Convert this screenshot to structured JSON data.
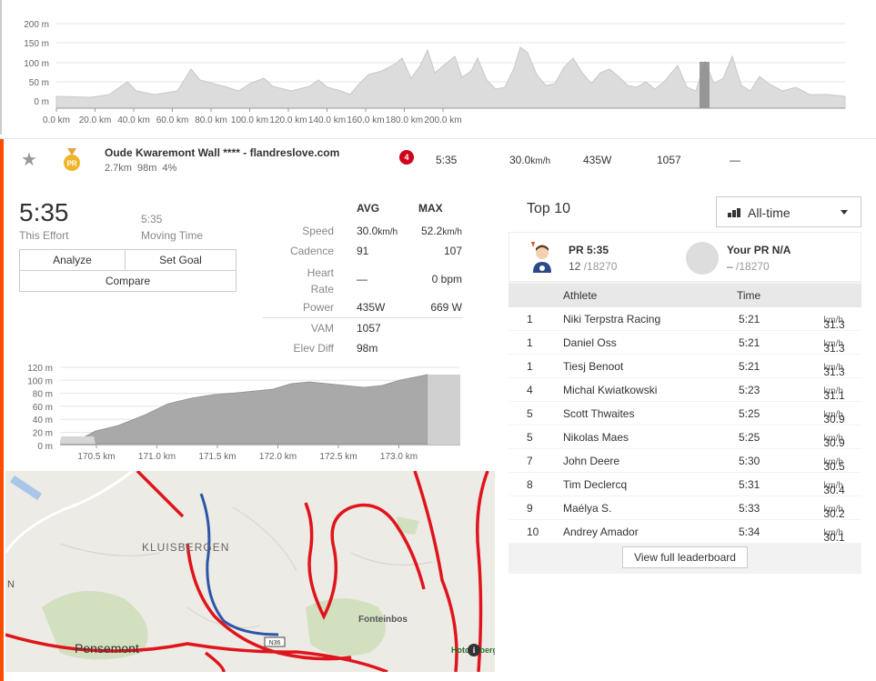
{
  "top_elevation": {
    "y_labels": [
      "200 m",
      "150 m",
      "100 m",
      "50 m",
      "0 m"
    ],
    "x_labels": [
      "0.0 km",
      "20.0 km",
      "40.0 km",
      "60.0 km",
      "80.0 km",
      "100.0 km",
      "120.0 km",
      "140.0 km",
      "160.0 km",
      "180.0 km",
      "200.0 km"
    ],
    "colors": {
      "fill": "#dcdcdc",
      "highlight": "#888888",
      "grid": "#e5e5e5"
    }
  },
  "segment": {
    "name": "Oude Kwaremont Wall **** - flandreslove.com",
    "distance": "2.7km",
    "elevation": "98m",
    "grade": "4%",
    "category": "4",
    "medal_label": "PR",
    "time": "5:35",
    "speed_value": "30.0",
    "speed_unit": "km/h",
    "power": "435W",
    "vam": "1057",
    "hr": "—"
  },
  "effort": {
    "time": "5:35",
    "time_label": "This Effort",
    "moving_time": "5:35",
    "moving_label": "Moving Time",
    "buttons": {
      "analyze": "Analyze",
      "set_goal": "Set Goal",
      "compare": "Compare"
    }
  },
  "stats": {
    "avg_header": "AVG",
    "max_header": "MAX",
    "rows": [
      {
        "label": "Speed",
        "avg": "30.0",
        "avg_unit": "km/h",
        "max": "52.2",
        "max_unit": "km/h"
      },
      {
        "label": "Cadence",
        "avg": "91",
        "avg_unit": "",
        "max": "107",
        "max_unit": ""
      },
      {
        "label": "Heart Rate",
        "avg": "—",
        "avg_unit": "",
        "max": "0 bpm",
        "max_unit": ""
      },
      {
        "label": "Power",
        "avg": "435W",
        "avg_unit": "",
        "max": "669 W",
        "max_unit": ""
      },
      {
        "label": "VAM",
        "avg": "1057",
        "avg_unit": "",
        "max": "",
        "max_unit": ""
      },
      {
        "label": "Elev Diff",
        "avg": "98m",
        "avg_unit": "",
        "max": "",
        "max_unit": ""
      }
    ]
  },
  "segment_elevation": {
    "y_labels": [
      "120 m",
      "100 m",
      "80 m",
      "60 m",
      "40 m",
      "20 m",
      "0 m"
    ],
    "x_labels": [
      "170.5 km",
      "171.0 km",
      "171.5 km",
      "172.0 km",
      "172.5 km",
      "173.0 km"
    ]
  },
  "map": {
    "labels": [
      "KLUISBERGEN",
      "Pensemont",
      "Fonteinbos",
      "Hotondberg",
      "N",
      "N36"
    ],
    "colors": {
      "route": "#e0141c",
      "segment": "#2d55a8",
      "land": "#ecebe5",
      "forest": "#c9dcb0"
    }
  },
  "leaderboard": {
    "title": "Top 10",
    "filter": "All-time",
    "my_pr": {
      "label": "PR 5:35",
      "rank": "12",
      "total": "/18270"
    },
    "your_pr": {
      "label": "Your PR N/A",
      "rank": "–",
      "total": "/18270"
    },
    "headers": {
      "athlete": "Athlete",
      "time": "Time"
    },
    "rows": [
      {
        "rank": "1",
        "name": "Niki Terpstra Racing",
        "time": "5:21",
        "speed": "31.3",
        "unit": "km/h"
      },
      {
        "rank": "1",
        "name": "Daniel Oss",
        "time": "5:21",
        "speed": "31.3",
        "unit": "km/h"
      },
      {
        "rank": "1",
        "name": "Tiesj Benoot",
        "time": "5:21",
        "speed": "31.3",
        "unit": "km/h"
      },
      {
        "rank": "4",
        "name": "Michal Kwiatkowski",
        "time": "5:23",
        "speed": "31.1",
        "unit": "km/h"
      },
      {
        "rank": "5",
        "name": "Scott Thwaites",
        "time": "5:25",
        "speed": "30.9",
        "unit": "km/h"
      },
      {
        "rank": "5",
        "name": "Nikolas Maes",
        "time": "5:25",
        "speed": "30.9",
        "unit": "km/h"
      },
      {
        "rank": "7",
        "name": "John Deere",
        "time": "5:30",
        "speed": "30.5",
        "unit": "km/h"
      },
      {
        "rank": "8",
        "name": "Tim Declercq",
        "time": "5:31",
        "speed": "30.4",
        "unit": "km/h"
      },
      {
        "rank": "9",
        "name": "Maélya S.",
        "time": "5:33",
        "speed": "30.2",
        "unit": "km/h"
      },
      {
        "rank": "10",
        "name": "Andrey Amador",
        "time": "5:34",
        "speed": "30.1",
        "unit": "km/h"
      }
    ],
    "view_full": "View full leaderboard"
  }
}
